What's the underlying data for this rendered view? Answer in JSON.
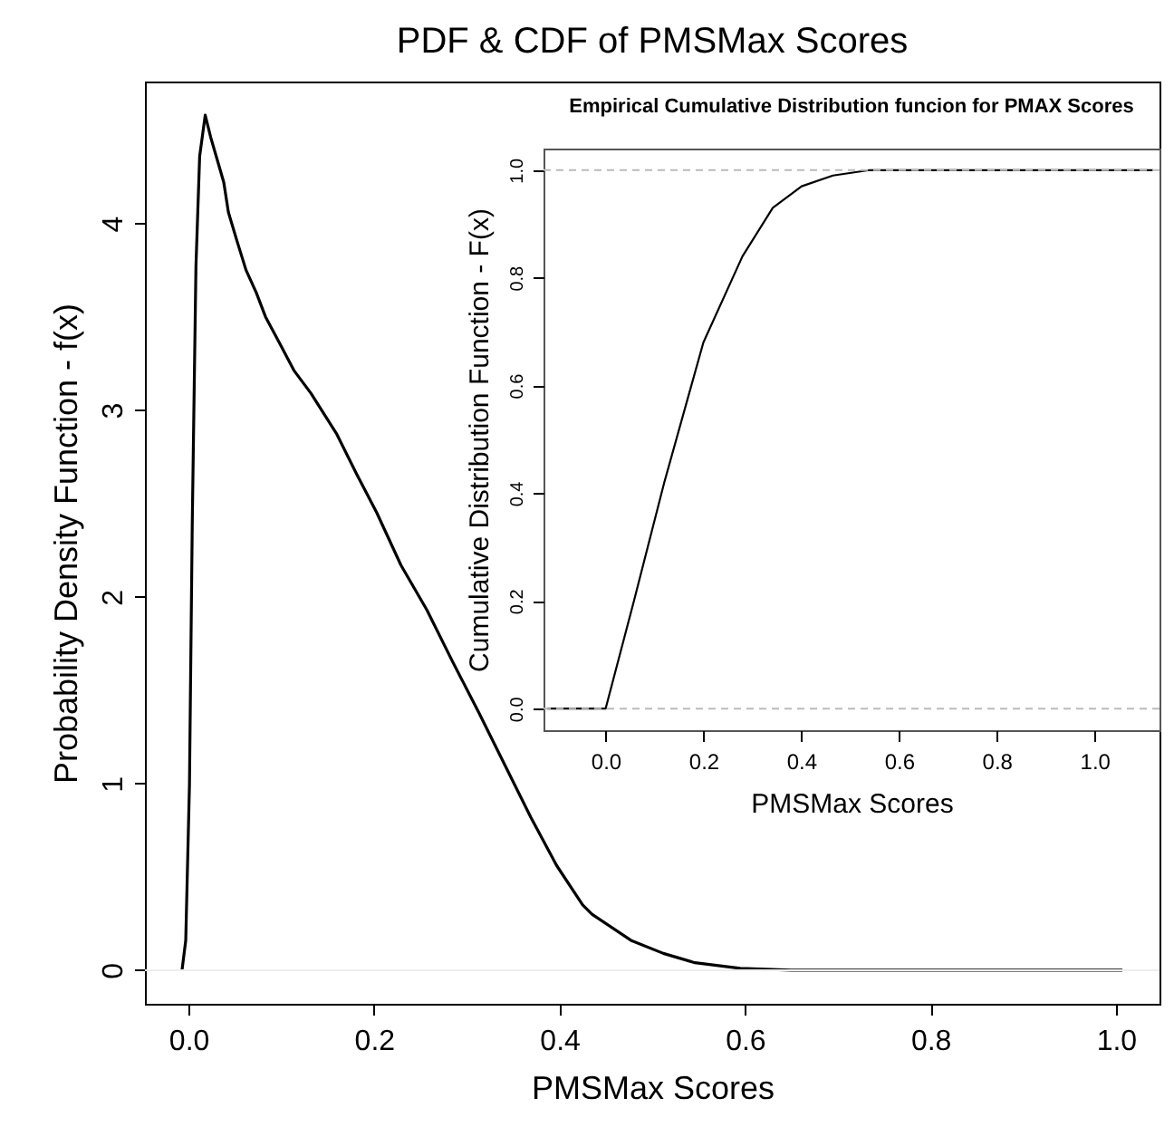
{
  "chart_data": [
    {
      "type": "line",
      "title": "PDF & CDF of PMSMax Scores",
      "xlabel": "PMSMax Scores",
      "ylabel": "Probability Density Function - f(x)",
      "x": [
        -0.007,
        -0.003,
        0.001,
        0.004,
        0.008,
        0.012,
        0.018,
        0.024,
        0.031,
        0.038,
        0.043,
        0.052,
        0.062,
        0.073,
        0.083,
        0.097,
        0.114,
        0.132,
        0.16,
        0.181,
        0.203,
        0.229,
        0.257,
        0.285,
        0.313,
        0.341,
        0.369,
        0.397,
        0.425,
        0.435,
        0.477,
        0.512,
        0.546,
        0.595,
        0.65,
        0.8,
        1.007
      ],
      "series": [
        {
          "color": "#000000",
          "values": [
            0,
            0.16,
            0.99,
            2.38,
            3.77,
            4.36,
            4.58,
            4.46,
            4.34,
            4.22,
            4.06,
            3.91,
            3.75,
            3.63,
            3.5,
            3.37,
            3.21,
            3.09,
            2.87,
            2.66,
            2.45,
            2.17,
            1.93,
            1.65,
            1.38,
            1.1,
            0.82,
            0.56,
            0.35,
            0.3,
            0.16,
            0.09,
            0.04,
            0.01,
            0,
            0,
            0
          ]
        }
      ],
      "xlim": [
        -0.047,
        1.047
      ],
      "ylim": [
        -0.18,
        4.76
      ],
      "xticks": [
        {
          "value": 0,
          "label": "0.0"
        },
        {
          "value": 0.2,
          "label": "0.2"
        },
        {
          "value": 0.4,
          "label": "0.4"
        },
        {
          "value": 0.6,
          "label": "0.6"
        },
        {
          "value": 0.8,
          "label": "0.8"
        },
        {
          "value": 1,
          "label": "1.0"
        }
      ],
      "yticks": [
        0,
        1,
        2,
        3,
        4
      ],
      "ref_lines": [
        {
          "axis": "y",
          "value": 0,
          "color": "#eeeeee"
        }
      ]
    },
    {
      "type": "line",
      "title": "Empirical Cumulative Distribution funcion for PMAX Scores",
      "xlabel": "PMSMax Scores",
      "ylabel": "Cumulative Distribution Function - F(x)",
      "x": [
        -0.12,
        0,
        0.058,
        0.12,
        0.2,
        0.28,
        0.342,
        0.401,
        0.465,
        0.54,
        1.12
      ],
      "series": [
        {
          "color": "#000000",
          "values": [
            0,
            0,
            0.2,
            0.42,
            0.68,
            0.84,
            0.93,
            0.97,
            0.99,
            1,
            1
          ]
        }
      ],
      "xlim": [
        -0.127,
        1.133
      ],
      "ylim": [
        -0.04,
        1.04
      ],
      "xticks": [
        {
          "value": 0,
          "label": "0.0"
        },
        {
          "value": 0.2,
          "label": "0.2"
        },
        {
          "value": 0.4,
          "label": "0.4"
        },
        {
          "value": 0.6,
          "label": "0.6"
        },
        {
          "value": 0.8,
          "label": "0.8"
        },
        {
          "value": 1,
          "label": "1.0"
        }
      ],
      "yticks": [
        {
          "value": 0,
          "label": "0.0"
        },
        {
          "value": 0.2,
          "label": "0.2"
        },
        {
          "value": 0.4,
          "label": "0.4"
        },
        {
          "value": 0.6,
          "label": "0.6"
        },
        {
          "value": 0.8,
          "label": "0.8"
        },
        {
          "value": 1,
          "label": "1.0"
        }
      ],
      "ref_lines": [
        {
          "axis": "y",
          "value": 0,
          "color": "#bbbbbb",
          "line_style": "dashed"
        },
        {
          "axis": "y",
          "value": 1,
          "color": "#bbbbbb",
          "line_style": "dashed"
        }
      ]
    }
  ]
}
